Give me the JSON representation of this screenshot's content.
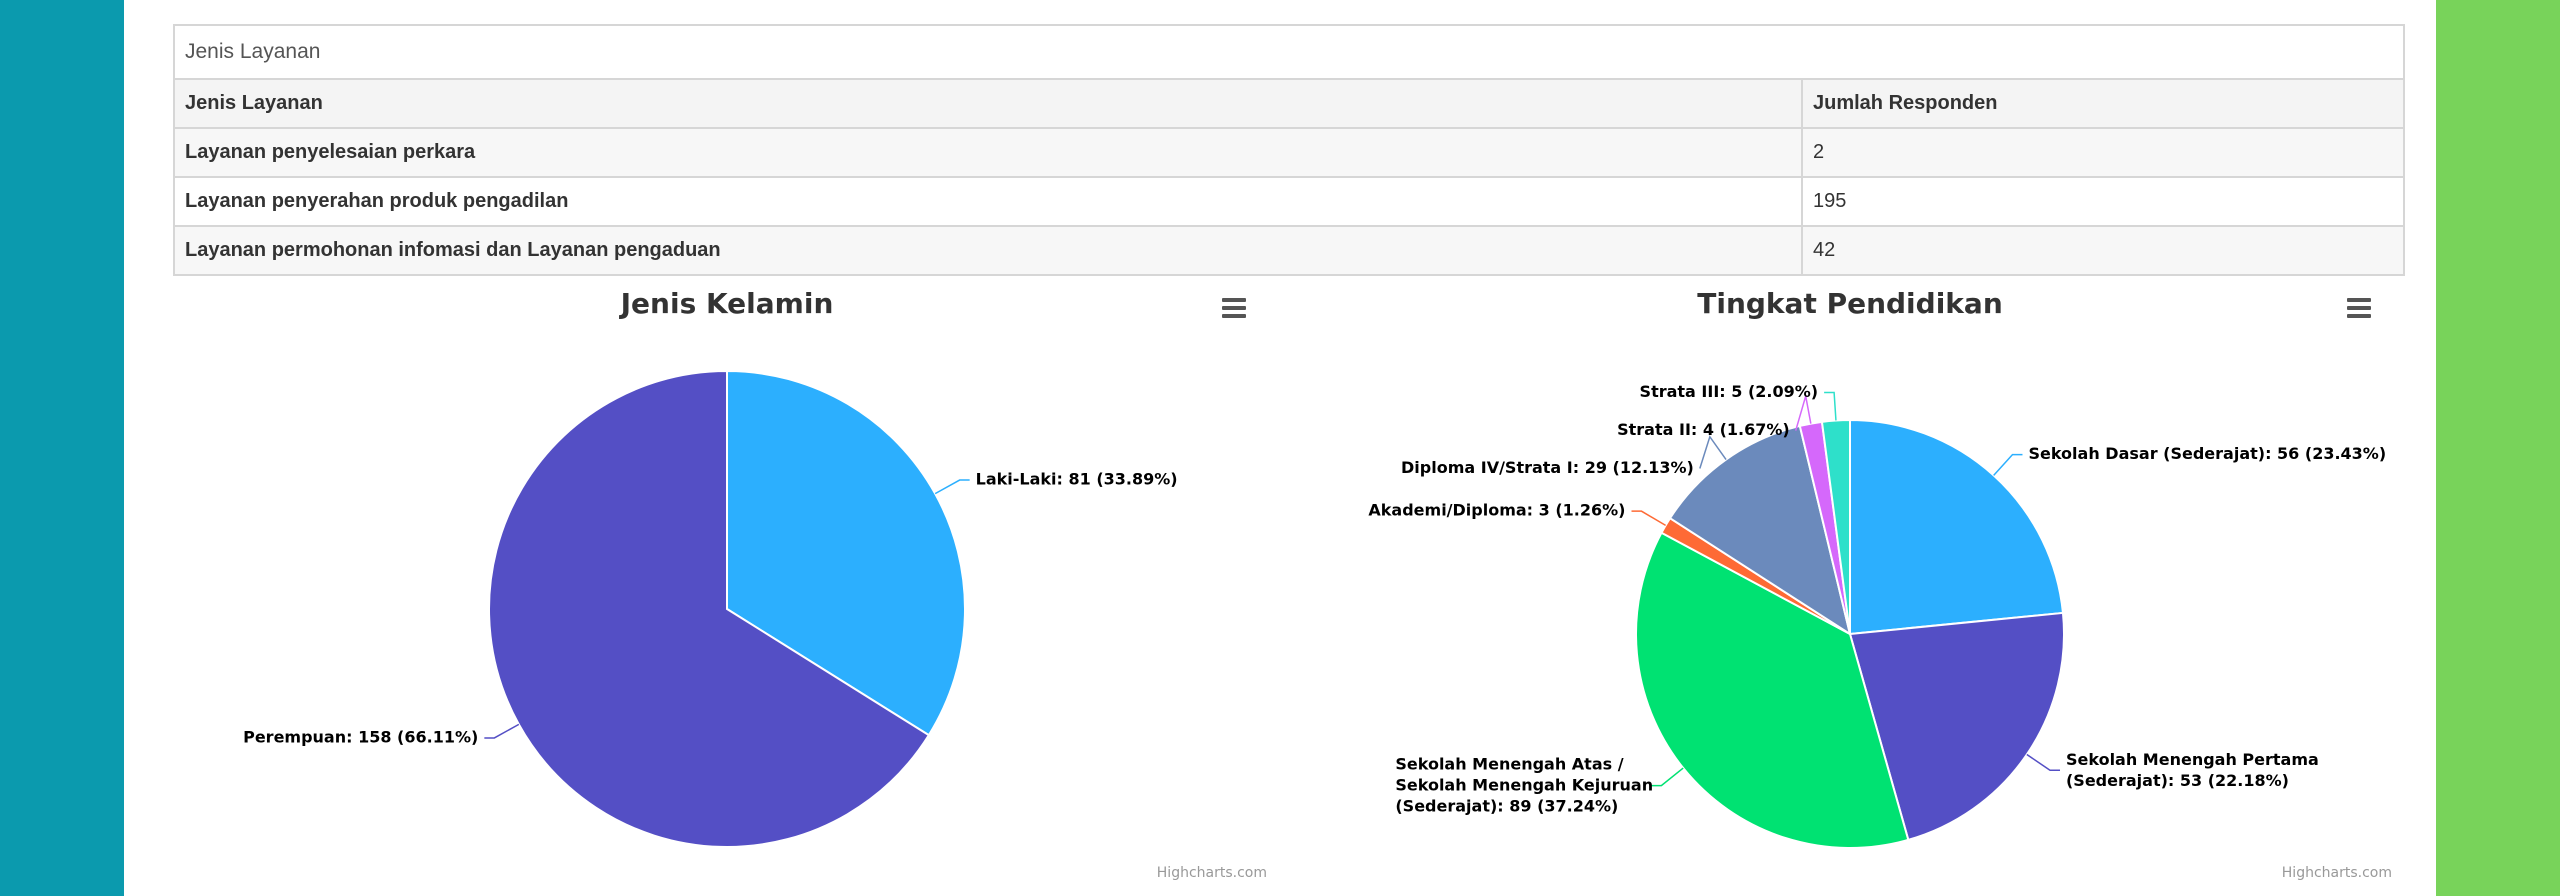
{
  "table": {
    "title": "Jenis Layanan",
    "columns": [
      "Jenis Layanan",
      "Jumlah Responden"
    ],
    "rows": [
      [
        "Layanan penyelesaian perkara",
        2
      ],
      [
        "Layanan penyerahan produk pengadilan",
        195
      ],
      [
        "Layanan permohonan infomasi dan Layanan pengaduan",
        42
      ]
    ]
  },
  "chart_data": [
    {
      "type": "pie",
      "title": "Jenis Kelamin",
      "categories": [
        "Laki-Laki",
        "Perempuan"
      ],
      "values": [
        81,
        158
      ],
      "value_labels": [
        "Laki-Laki: 81 (33.89%)",
        "Perempuan: 158 (66.11%)"
      ],
      "colors": [
        "#2caffe",
        "#544fc5"
      ],
      "credits": "Highcharts.com"
    },
    {
      "type": "pie",
      "title": "Tingkat Pendidikan",
      "categories": [
        "Sekolah Dasar (Sederajat)",
        "Sekolah Menengah Pertama (Sederajat)",
        "Sekolah Menengah Atas / Sekolah Menengah Kejuruan (Sederajat)",
        "Akademi/Diploma",
        "Diploma IV/Strata I",
        "Strata II",
        "Strata III"
      ],
      "values": [
        56,
        53,
        89,
        3,
        29,
        4,
        5
      ],
      "value_labels": [
        "Sekolah Dasar (Sederajat): 56 (23.43%)",
        "Sekolah Menengah Pertama (Sederajat): 53 (22.18%)",
        "Sekolah Menengah Atas / Sekolah Menengah Kejuruan (Sederajat): 89 (37.24%)",
        "Akademi/Diploma: 3 (1.26%)",
        "Diploma IV/Strata I: 29 (12.13%)",
        "Strata II: 4 (1.67%)",
        "Strata III: 5 (2.09%)"
      ],
      "colors": [
        "#2caffe",
        "#544fc5",
        "#00e272",
        "#fe6a35",
        "#6b8abc",
        "#d568fb",
        "#2ee0ca"
      ],
      "credits": "Highcharts.com"
    }
  ]
}
